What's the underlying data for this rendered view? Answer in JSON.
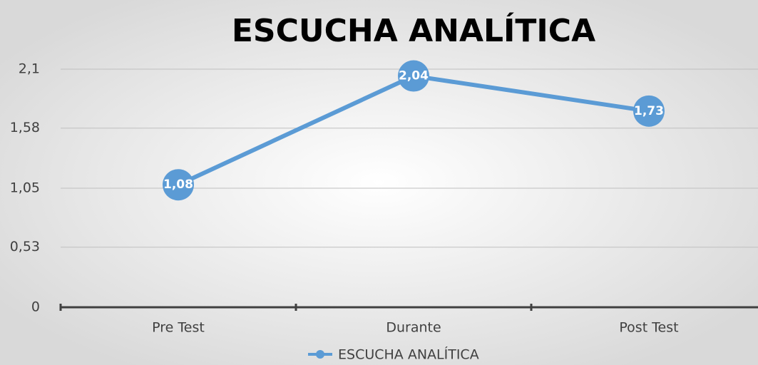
{
  "chart_data": {
    "type": "line",
    "title": "ESCUCHA ANALÍTICA",
    "categories": [
      "Pre Test",
      "Durante",
      "Post Test"
    ],
    "series": [
      {
        "name": "ESCUCHA ANALÍTICA",
        "color": "#5b9bd5",
        "values": [
          1.08,
          2.04,
          1.73
        ],
        "value_labels": [
          "1,08",
          "2,04",
          "1,73"
        ]
      }
    ],
    "ylim": [
      0,
      2.1
    ],
    "yticks": [
      0,
      {
        "value": 0.53,
        "label": "0,53"
      },
      {
        "value": 1.05,
        "label": "1,05"
      },
      {
        "value": 1.58,
        "label": "1,58"
      },
      {
        "value": 2.1,
        "label": "2,1"
      }
    ],
    "grid": true,
    "legend": "bottom"
  }
}
